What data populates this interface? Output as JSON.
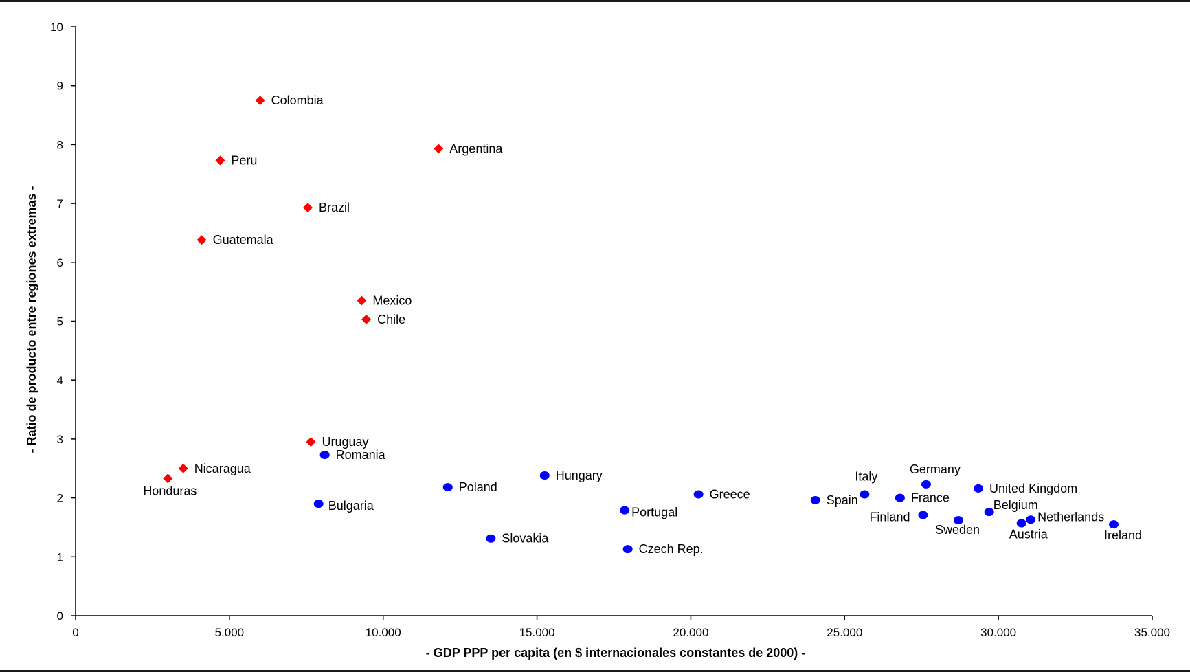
{
  "chart_data": {
    "type": "scatter",
    "xlabel": "- GDP PPP per capita (en $ internacionales constantes de 2000) -",
    "ylabel": "- Ratio de producto entre regiones extremas -",
    "xlim": [
      0,
      35000
    ],
    "ylim": [
      0,
      10
    ],
    "x_ticks": [
      0,
      5000,
      10000,
      15000,
      20000,
      25000,
      30000,
      35000
    ],
    "x_tick_labels": [
      "0",
      "5.000",
      "10.000",
      "15.000",
      "20.000",
      "25.000",
      "30.000",
      "35.000"
    ],
    "y_ticks": [
      0,
      1,
      2,
      3,
      4,
      5,
      6,
      7,
      8,
      9,
      10
    ],
    "y_tick_labels": [
      "0",
      "1",
      "2",
      "3",
      "4",
      "5",
      "6",
      "7",
      "8",
      "9",
      "10"
    ],
    "grid": false,
    "series": [
      {
        "marker": "diamond",
        "color": "#ff0000",
        "points": [
          {
            "label": "Colombia",
            "x": 6000,
            "y": 8.75
          },
          {
            "label": "Argentina",
            "x": 11800,
            "y": 7.93
          },
          {
            "label": "Peru",
            "x": 4700,
            "y": 7.73
          },
          {
            "label": "Brazil",
            "x": 7550,
            "y": 6.93
          },
          {
            "label": "Guatemala",
            "x": 4100,
            "y": 6.38
          },
          {
            "label": "Mexico",
            "x": 9300,
            "y": 5.35
          },
          {
            "label": "Chile",
            "x": 9450,
            "y": 5.03
          },
          {
            "label": "Uruguay",
            "x": 7650,
            "y": 2.95
          },
          {
            "label": "Nicaragua",
            "x": 3500,
            "y": 2.5
          },
          {
            "label": "Honduras",
            "x": 3000,
            "y": 2.33
          }
        ]
      },
      {
        "marker": "circle",
        "color": "#0000ff",
        "points": [
          {
            "label": "Romania",
            "x": 8100,
            "y": 2.73
          },
          {
            "label": "Bulgaria",
            "x": 7900,
            "y": 1.9
          },
          {
            "label": "Poland",
            "x": 12100,
            "y": 2.18
          },
          {
            "label": "Slovakia",
            "x": 13500,
            "y": 1.31
          },
          {
            "label": "Hungary",
            "x": 15250,
            "y": 2.38
          },
          {
            "label": "Portugal",
            "x": 17850,
            "y": 1.79
          },
          {
            "label": "Czech Rep.",
            "x": 17950,
            "y": 1.13
          },
          {
            "label": "Greece",
            "x": 20250,
            "y": 2.06
          },
          {
            "label": "Spain",
            "x": 24050,
            "y": 1.96
          },
          {
            "label": "Italy",
            "x": 25650,
            "y": 2.06
          },
          {
            "label": "France",
            "x": 26800,
            "y": 2.0
          },
          {
            "label": "Germany",
            "x": 27650,
            "y": 2.23
          },
          {
            "label": "Finland",
            "x": 27550,
            "y": 1.71
          },
          {
            "label": "Sweden",
            "x": 28700,
            "y": 1.62
          },
          {
            "label": "United Kingdom",
            "x": 29350,
            "y": 2.16
          },
          {
            "label": "Belgium",
            "x": 29700,
            "y": 1.76
          },
          {
            "label": "Austria",
            "x": 30750,
            "y": 1.57
          },
          {
            "label": "Netherlands",
            "x": 31050,
            "y": 1.63
          },
          {
            "label": "Ireland",
            "x": 33750,
            "y": 1.55
          }
        ]
      }
    ]
  }
}
